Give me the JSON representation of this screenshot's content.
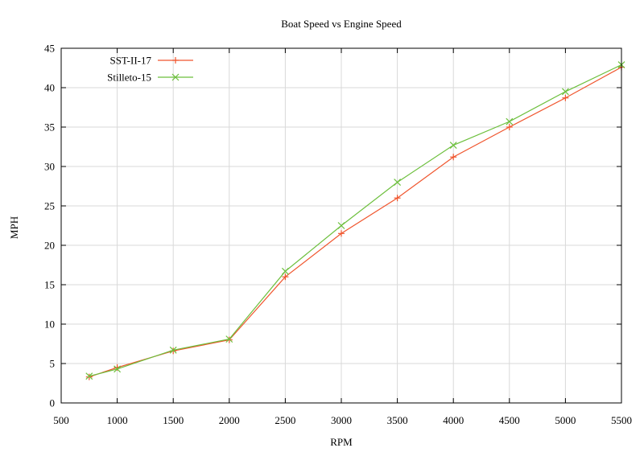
{
  "chart_data": {
    "type": "line",
    "title": "Boat Speed vs Engine Speed",
    "xlabel": "RPM",
    "ylabel": "MPH",
    "xlim": [
      500,
      5500
    ],
    "ylim": [
      0,
      45
    ],
    "xticks": [
      500,
      1000,
      1500,
      2000,
      2500,
      3000,
      3500,
      4000,
      4500,
      5000,
      5500
    ],
    "yticks": [
      0,
      5,
      10,
      15,
      20,
      25,
      30,
      35,
      40,
      45
    ],
    "grid": true,
    "legend_position": "top-left",
    "series": [
      {
        "name": "SST-II-17",
        "color": "#f0552d",
        "marker": "plus",
        "x": [
          750,
          1000,
          1500,
          2000,
          2500,
          3000,
          3500,
          4000,
          4500,
          5000,
          5500
        ],
        "y": [
          3.3,
          4.5,
          6.6,
          8.0,
          16.0,
          21.5,
          26.0,
          31.2,
          35.0,
          38.7,
          42.6
        ]
      },
      {
        "name": "Stilleto-15",
        "color": "#6cbf3c",
        "marker": "cross",
        "x": [
          750,
          1000,
          1500,
          2000,
          2500,
          3000,
          3500,
          4000,
          4500,
          5000,
          5500
        ],
        "y": [
          3.4,
          4.3,
          6.7,
          8.1,
          16.7,
          22.5,
          28.0,
          32.7,
          35.7,
          39.5,
          42.9
        ]
      }
    ]
  }
}
